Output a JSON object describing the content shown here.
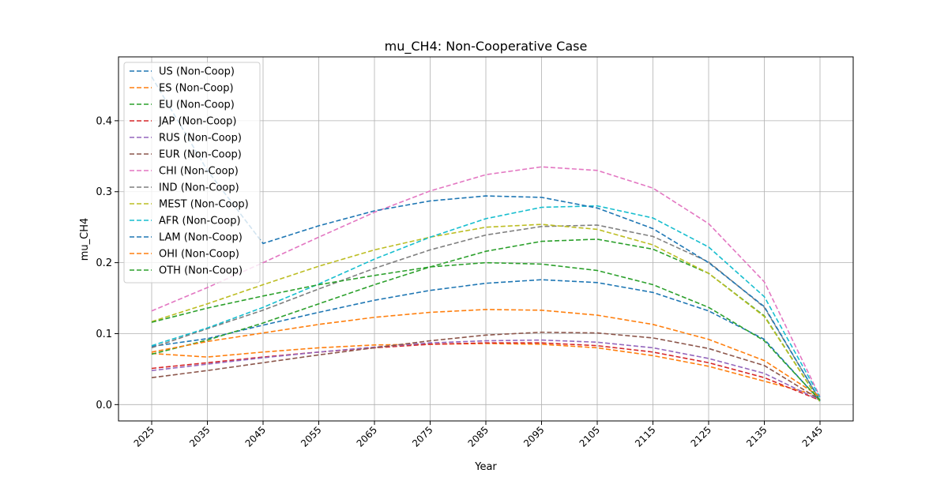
{
  "chart_data": {
    "type": "line",
    "title": "mu_CH4: Non-Cooperative Case",
    "xlabel": "Year",
    "ylabel": "mu_CH4",
    "x": [
      2025,
      2035,
      2045,
      2055,
      2065,
      2075,
      2085,
      2095,
      2105,
      2115,
      2125,
      2135,
      2145
    ],
    "xticks": [
      "2025",
      "2035",
      "2045",
      "2055",
      "2065",
      "2075",
      "2085",
      "2095",
      "2105",
      "2115",
      "2125",
      "2135",
      "2145"
    ],
    "ylim": [
      -0.023,
      0.49
    ],
    "yticks": [
      0.0,
      0.1,
      0.2,
      0.3,
      0.4
    ],
    "ytick_labels": [
      "0.0",
      "0.1",
      "0.2",
      "0.3",
      "0.4"
    ],
    "grid": true,
    "legend_position": "top-left",
    "line_style": "dashed",
    "series": [
      {
        "name": "US (Non-Coop)",
        "color": "#1f77b4",
        "values": [
          0.082,
          0.093,
          0.112,
          0.13,
          0.147,
          0.161,
          0.171,
          0.176,
          0.172,
          0.158,
          0.132,
          0.092,
          0.005
        ]
      },
      {
        "name": "ES (Non-Coop)",
        "color": "#ff7f0e",
        "values": [
          0.072,
          0.067,
          0.074,
          0.08,
          0.084,
          0.085,
          0.086,
          0.085,
          0.08,
          0.069,
          0.054,
          0.033,
          0.012
        ]
      },
      {
        "name": "EU (Non-Coop)",
        "color": "#2ca02c",
        "values": [
          0.071,
          0.091,
          0.115,
          0.142,
          0.169,
          0.194,
          0.216,
          0.23,
          0.233,
          0.219,
          0.185,
          0.125,
          0.004
        ]
      },
      {
        "name": "JAP (Non-Coop)",
        "color": "#d62728",
        "values": [
          0.051,
          0.059,
          0.067,
          0.074,
          0.08,
          0.085,
          0.087,
          0.087,
          0.083,
          0.074,
          0.059,
          0.038,
          0.006
        ]
      },
      {
        "name": "RUS (Non-Coop)",
        "color": "#9467bd",
        "values": [
          0.048,
          0.057,
          0.066,
          0.074,
          0.081,
          0.087,
          0.09,
          0.091,
          0.088,
          0.08,
          0.065,
          0.044,
          0.006
        ]
      },
      {
        "name": "EUR (Non-Coop)",
        "color": "#8c564b",
        "values": [
          0.038,
          0.048,
          0.059,
          0.07,
          0.08,
          0.09,
          0.098,
          0.102,
          0.101,
          0.094,
          0.079,
          0.055,
          0.007
        ]
      },
      {
        "name": "CHI (Non-Coop)",
        "color": "#e377c2",
        "values": [
          0.132,
          0.165,
          0.2,
          0.236,
          0.271,
          0.301,
          0.324,
          0.335,
          0.33,
          0.305,
          0.255,
          0.173,
          0.011
        ]
      },
      {
        "name": "IND (Non-Coop)",
        "color": "#7f7f7f",
        "values": [
          0.08,
          0.107,
          0.133,
          0.163,
          0.192,
          0.218,
          0.239,
          0.251,
          0.253,
          0.237,
          0.201,
          0.137,
          0.006
        ]
      },
      {
        "name": "MEST (Non-Coop)",
        "color": "#bcbd22",
        "values": [
          0.117,
          0.142,
          0.169,
          0.195,
          0.218,
          0.236,
          0.25,
          0.254,
          0.247,
          0.225,
          0.185,
          0.124,
          0.004
        ]
      },
      {
        "name": "AFR (Non-Coop)",
        "color": "#17becf",
        "values": [
          0.083,
          0.108,
          0.137,
          0.17,
          0.205,
          0.236,
          0.262,
          0.278,
          0.28,
          0.263,
          0.222,
          0.152,
          0.01
        ]
      },
      {
        "name": "LAM (Non-Coop)",
        "color": "#1f77b4",
        "values": [
          0.462,
          0.33,
          0.227,
          0.252,
          0.273,
          0.287,
          0.294,
          0.292,
          0.277,
          0.248,
          0.2,
          0.138,
          0.006
        ]
      },
      {
        "name": "OHI (Non-Coop)",
        "color": "#ff7f0e",
        "values": [
          0.074,
          0.089,
          0.101,
          0.113,
          0.123,
          0.13,
          0.134,
          0.133,
          0.126,
          0.113,
          0.092,
          0.062,
          0.011
        ]
      },
      {
        "name": "OTH (Non-Coop)",
        "color": "#2ca02c",
        "values": [
          0.116,
          0.136,
          0.153,
          0.169,
          0.182,
          0.194,
          0.2,
          0.198,
          0.189,
          0.169,
          0.137,
          0.09,
          0.006
        ]
      }
    ]
  }
}
